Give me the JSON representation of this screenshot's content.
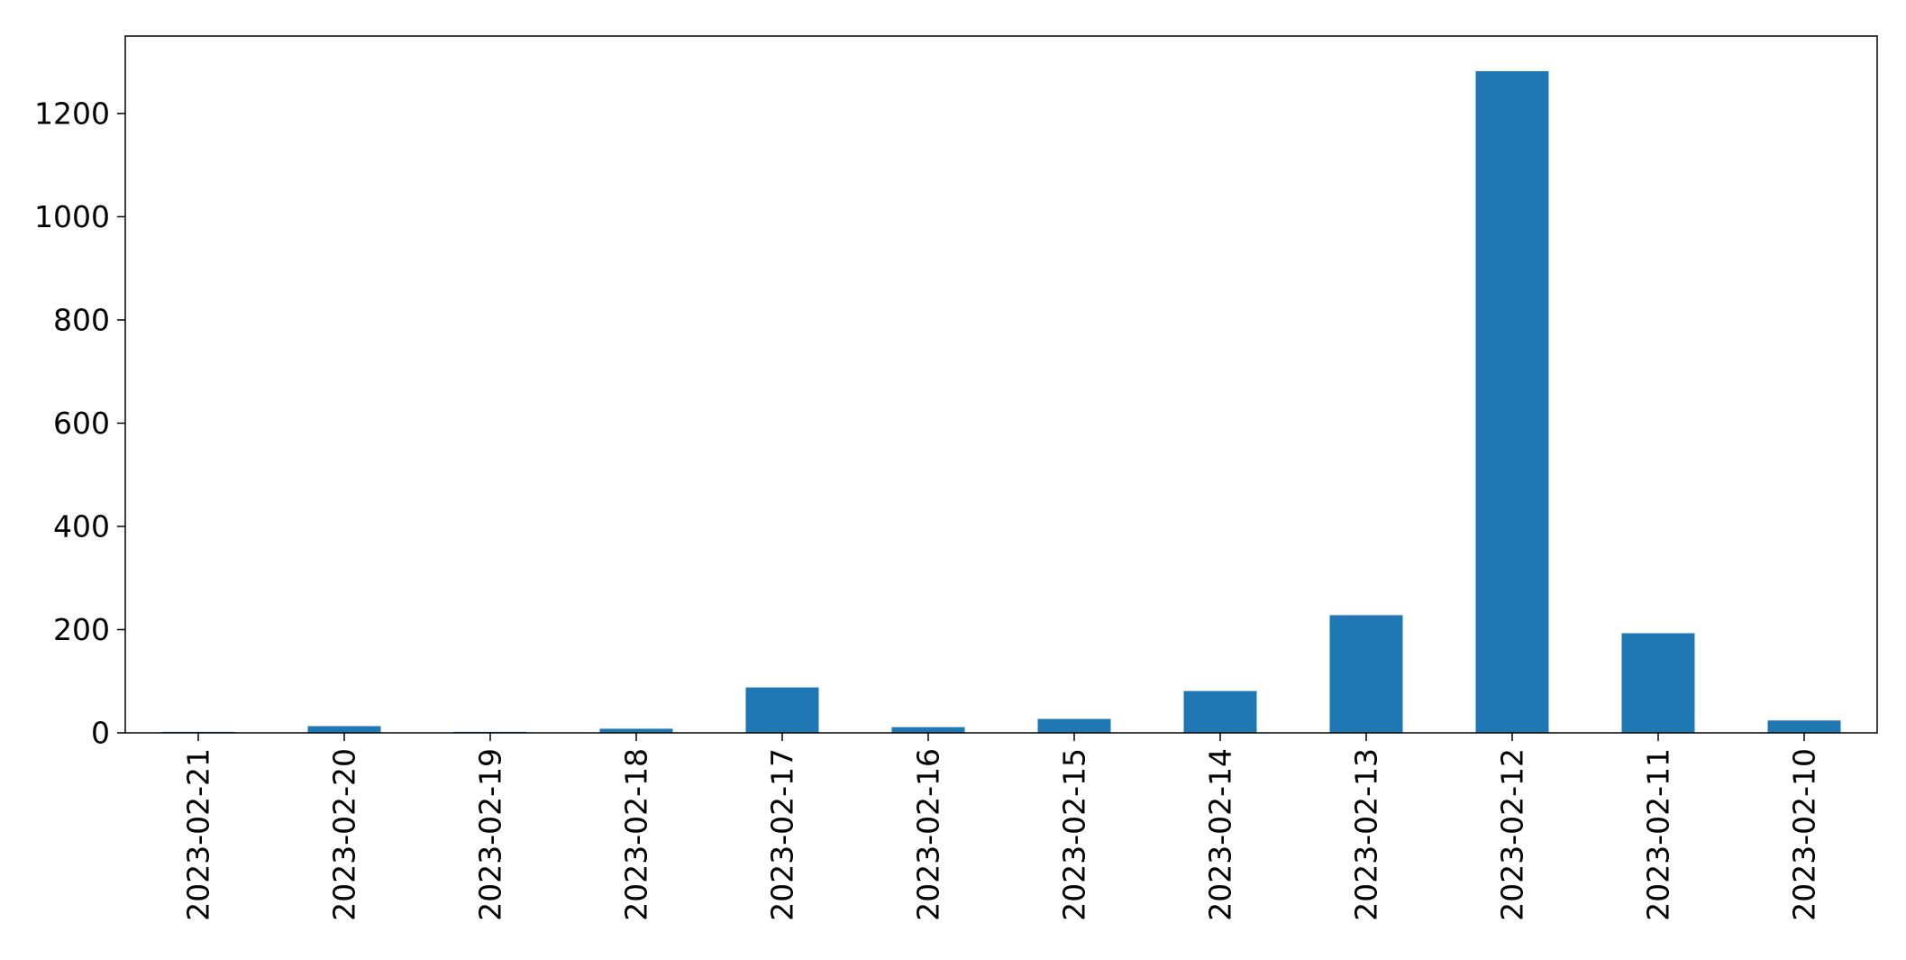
{
  "chart_data": {
    "type": "bar",
    "title": "",
    "xlabel": "",
    "ylabel": "",
    "categories": [
      "2023-02-21",
      "2023-02-20",
      "2023-02-19",
      "2023-02-18",
      "2023-02-17",
      "2023-02-16",
      "2023-02-15",
      "2023-02-14",
      "2023-02-13",
      "2023-02-12",
      "2023-02-11",
      "2023-02-10"
    ],
    "values": [
      2,
      13,
      2,
      8,
      88,
      11,
      27,
      81,
      228,
      1282,
      193,
      24
    ],
    "ylim": [
      0,
      1350
    ],
    "yticks": [
      0,
      200,
      400,
      600,
      800,
      1000,
      1200
    ],
    "bar_color": "#1f77b4",
    "grid": false,
    "legend": "none"
  }
}
